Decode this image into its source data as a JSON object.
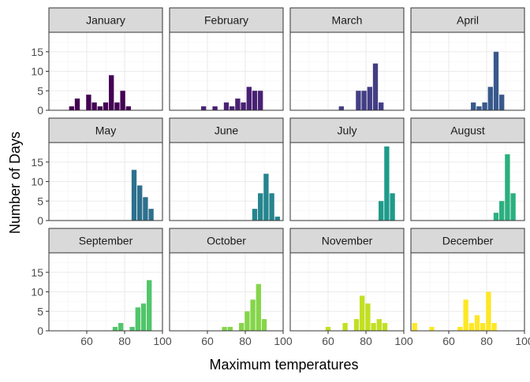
{
  "chart_data": {
    "type": "bar",
    "layout": "small-multiples 3x4",
    "xlabel": "Maximum temperatures",
    "ylabel": "Number of Days",
    "xlim": [
      40,
      100
    ],
    "ylim": [
      0,
      20
    ],
    "x_ticks": [
      60,
      80,
      100
    ],
    "y_ticks": [
      0,
      5,
      10,
      15
    ],
    "bin_width": 3,
    "grid": true,
    "panels": [
      {
        "label": "January",
        "color": "#440154",
        "bars": [
          {
            "x": 52,
            "y": 1
          },
          {
            "x": 55,
            "y": 3
          },
          {
            "x": 61,
            "y": 4
          },
          {
            "x": 64,
            "y": 2
          },
          {
            "x": 67,
            "y": 1
          },
          {
            "x": 70,
            "y": 2
          },
          {
            "x": 73,
            "y": 9
          },
          {
            "x": 76,
            "y": 2
          },
          {
            "x": 79,
            "y": 5
          },
          {
            "x": 82,
            "y": 1
          }
        ]
      },
      {
        "label": "February",
        "color": "#482173",
        "bars": [
          {
            "x": 58,
            "y": 1
          },
          {
            "x": 64,
            "y": 1
          },
          {
            "x": 70,
            "y": 2
          },
          {
            "x": 73,
            "y": 1
          },
          {
            "x": 76,
            "y": 3
          },
          {
            "x": 79,
            "y": 2
          },
          {
            "x": 82,
            "y": 6
          },
          {
            "x": 85,
            "y": 5
          },
          {
            "x": 88,
            "y": 5
          }
        ]
      },
      {
        "label": "March",
        "color": "#433E85",
        "bars": [
          {
            "x": 67,
            "y": 1
          },
          {
            "x": 76,
            "y": 5
          },
          {
            "x": 79,
            "y": 5
          },
          {
            "x": 82,
            "y": 6
          },
          {
            "x": 85,
            "y": 12
          },
          {
            "x": 88,
            "y": 2
          }
        ]
      },
      {
        "label": "April",
        "color": "#38598C",
        "bars": [
          {
            "x": 73,
            "y": 2
          },
          {
            "x": 76,
            "y": 1
          },
          {
            "x": 79,
            "y": 2
          },
          {
            "x": 82,
            "y": 6
          },
          {
            "x": 85,
            "y": 15
          },
          {
            "x": 88,
            "y": 4
          }
        ]
      },
      {
        "label": "May",
        "color": "#2D708E",
        "bars": [
          {
            "x": 85,
            "y": 13
          },
          {
            "x": 88,
            "y": 9
          },
          {
            "x": 91,
            "y": 6
          },
          {
            "x": 94,
            "y": 3
          }
        ]
      },
      {
        "label": "June",
        "color": "#25858E",
        "bars": [
          {
            "x": 85,
            "y": 3
          },
          {
            "x": 88,
            "y": 7
          },
          {
            "x": 91,
            "y": 12
          },
          {
            "x": 94,
            "y": 7
          },
          {
            "x": 97,
            "y": 1
          }
        ]
      },
      {
        "label": "July",
        "color": "#1E9B8A",
        "bars": [
          {
            "x": 88,
            "y": 5
          },
          {
            "x": 91,
            "y": 19
          },
          {
            "x": 94,
            "y": 7
          }
        ]
      },
      {
        "label": "August",
        "color": "#2BB07F",
        "bars": [
          {
            "x": 85,
            "y": 2
          },
          {
            "x": 88,
            "y": 5
          },
          {
            "x": 91,
            "y": 17
          },
          {
            "x": 94,
            "y": 7
          }
        ]
      },
      {
        "label": "September",
        "color": "#51C56A",
        "bars": [
          {
            "x": 75,
            "y": 1
          },
          {
            "x": 78,
            "y": 2
          },
          {
            "x": 84,
            "y": 1
          },
          {
            "x": 87,
            "y": 6
          },
          {
            "x": 90,
            "y": 7
          },
          {
            "x": 93,
            "y": 13
          }
        ]
      },
      {
        "label": "October",
        "color": "#85D54A",
        "bars": [
          {
            "x": 69,
            "y": 1
          },
          {
            "x": 72,
            "y": 1
          },
          {
            "x": 78,
            "y": 2
          },
          {
            "x": 81,
            "y": 5
          },
          {
            "x": 84,
            "y": 8
          },
          {
            "x": 87,
            "y": 12
          },
          {
            "x": 90,
            "y": 3
          }
        ]
      },
      {
        "label": "November",
        "color": "#C2DF23",
        "bars": [
          {
            "x": 60,
            "y": 1
          },
          {
            "x": 69,
            "y": 2
          },
          {
            "x": 75,
            "y": 3
          },
          {
            "x": 78,
            "y": 9
          },
          {
            "x": 81,
            "y": 7
          },
          {
            "x": 84,
            "y": 2
          },
          {
            "x": 87,
            "y": 3
          },
          {
            "x": 90,
            "y": 2
          }
        ]
      },
      {
        "label": "December",
        "color": "#FDE725",
        "bars": [
          {
            "x": 42,
            "y": 2
          },
          {
            "x": 51,
            "y": 1
          },
          {
            "x": 66,
            "y": 1
          },
          {
            "x": 69,
            "y": 8
          },
          {
            "x": 72,
            "y": 2
          },
          {
            "x": 75,
            "y": 4
          },
          {
            "x": 78,
            "y": 2
          },
          {
            "x": 81,
            "y": 10
          },
          {
            "x": 84,
            "y": 2
          }
        ]
      }
    ]
  }
}
